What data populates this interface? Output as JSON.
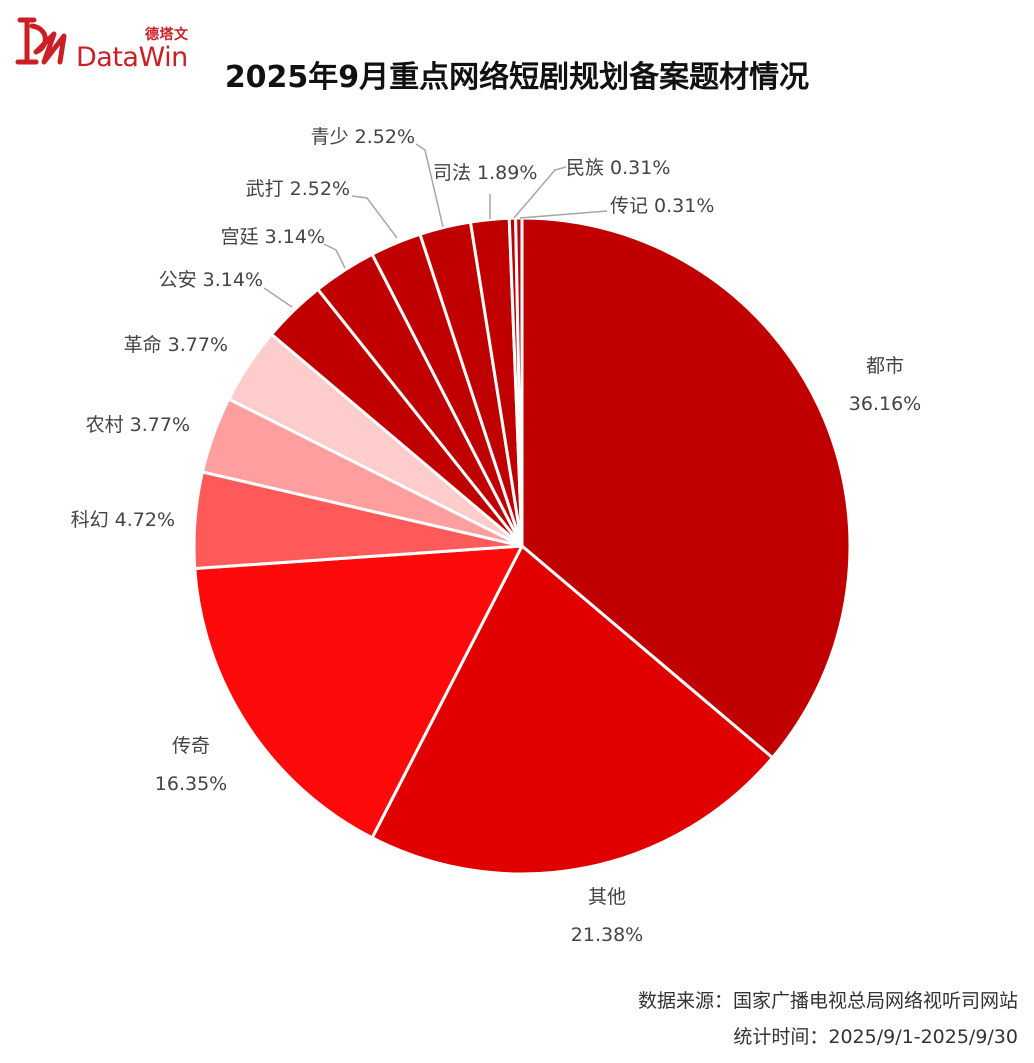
{
  "brand": {
    "name_cn": "德塔文",
    "name_en": "DataWin",
    "color": "#cc1f25"
  },
  "title": "2025年9月重点网络短剧规划备案题材情况",
  "footer": {
    "source": "数据来源：国家广播电视总局网络视听司网站",
    "period": "统计时间：2025/9/1-2025/9/30"
  },
  "chart_data": {
    "type": "pie",
    "start": "12 o'clock",
    "direction": "clockwise",
    "slices": [
      {
        "label": "都市",
        "percent": "36.16%",
        "value": 36.16,
        "color": "#c00000"
      },
      {
        "label": "其他",
        "percent": "21.38%",
        "value": 21.38,
        "color": "#e00000"
      },
      {
        "label": "传奇",
        "percent": "16.35%",
        "value": 16.35,
        "color": "#ff0a0a"
      },
      {
        "label": "科幻",
        "percent": "4.72%",
        "value": 4.72,
        "color": "#ff5a5a"
      },
      {
        "label": "农村",
        "percent": "3.77%",
        "value": 3.77,
        "color": "#ff9e9e"
      },
      {
        "label": "革命",
        "percent": "3.77%",
        "value": 3.77,
        "color": "#ffcccc"
      },
      {
        "label": "公安",
        "percent": "3.14%",
        "value": 3.14,
        "color": "#c00000"
      },
      {
        "label": "宫廷",
        "percent": "3.14%",
        "value": 3.14,
        "color": "#c00000"
      },
      {
        "label": "武打",
        "percent": "2.52%",
        "value": 2.52,
        "color": "#c00000"
      },
      {
        "label": "青少",
        "percent": "2.52%",
        "value": 2.52,
        "color": "#c00000"
      },
      {
        "label": "司法",
        "percent": "1.89%",
        "value": 1.89,
        "color": "#c00000"
      },
      {
        "label": "民族",
        "percent": "0.31%",
        "value": 0.31,
        "color": "#c00000"
      },
      {
        "label": "传记",
        "percent": "0.31%",
        "value": 0.31,
        "color": "#c00000"
      }
    ]
  }
}
